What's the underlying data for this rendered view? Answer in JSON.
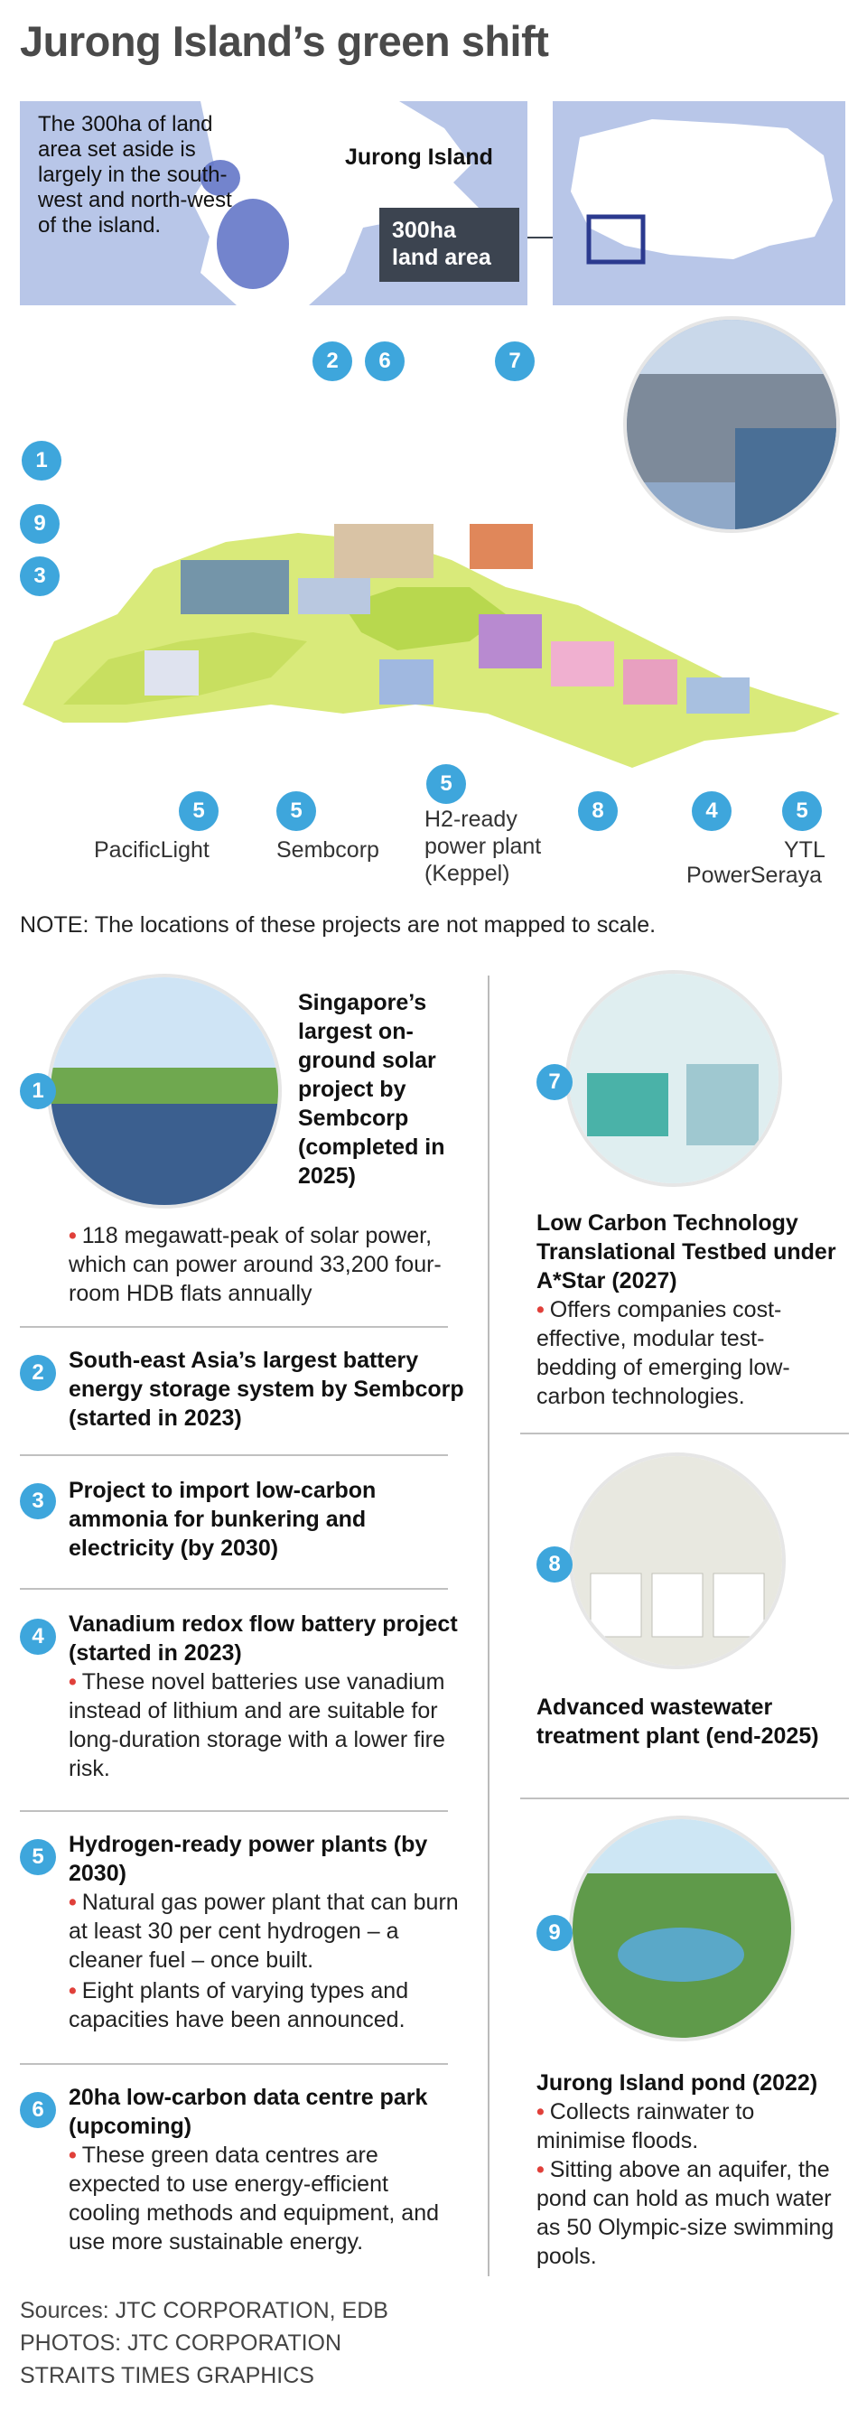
{
  "title": "Jurong Island’s green shift",
  "map": {
    "description": "The 300ha of land area set aside is largely in the south-west and north-west of the island.",
    "island_label": "Jurong Island",
    "area_line1": "300ha",
    "area_line2": "land area"
  },
  "illustration": {
    "markers": [
      "1",
      "2",
      "3",
      "4",
      "5",
      "6",
      "7",
      "8",
      "9"
    ],
    "labels": {
      "pacificlight": "PacificLight",
      "sembcorp": "Sembcorp",
      "keppel_line1": "H2-ready",
      "keppel_line2": "power plant",
      "keppel_line3": "(Keppel)",
      "ytl": "YTL",
      "powerseraya": "PowerSeraya"
    }
  },
  "note": "NOTE: The locations of these projects are not mapped to scale.",
  "projects": {
    "p1": {
      "num": "1",
      "title": "Singapore’s largest on-ground solar project by Sembcorp (completed in 2025)",
      "bullets": [
        "118 megawatt-peak of solar power, which can power around 33,200 four-room HDB flats annually"
      ]
    },
    "p2": {
      "num": "2",
      "title": "South-east Asia’s largest battery energy storage system by Sembcorp (started in 2023)"
    },
    "p3": {
      "num": "3",
      "title": "Project to import low-carbon ammonia for bunkering and electricity (by 2030)"
    },
    "p4": {
      "num": "4",
      "title": "Vanadium redox flow battery project (started in 2023)",
      "bullets": [
        "These novel batteries use vanadium instead of lithium and are suitable for long-duration storage with a lower fire risk."
      ]
    },
    "p5": {
      "num": "5",
      "title": "Hydrogen-ready power plants (by 2030)",
      "bullets": [
        "Natural gas power plant that can burn at least 30 per cent hydrogen – a cleaner fuel – once built.",
        "Eight plants of varying types and capacities have been announced."
      ]
    },
    "p6": {
      "num": "6",
      "title": "20ha low-carbon data centre park (upcoming)",
      "bullets": [
        "These green data centres are expected to use energy-efficient cooling methods and equipment, and use more sustainable energy."
      ]
    },
    "p7": {
      "num": "7",
      "title": "Low Carbon Technology Translational Testbed under A*Star (2027)",
      "bullets": [
        "Offers companies cost-effective, modular test-bedding of emerging low-carbon technologies."
      ]
    },
    "p8": {
      "num": "8",
      "title": "Advanced wastewater treatment plant (end-2025)"
    },
    "p9": {
      "num": "9",
      "title": "Jurong Island pond (2022)",
      "bullets": [
        "Collects rainwater to minimise floods.",
        "Sitting above an aquifer, the pond can hold as much water as 50 Olympic-size swimming pools."
      ]
    }
  },
  "credits": {
    "sources": "Sources: JTC CORPORATION, EDB",
    "photos": "PHOTOS: JTC CORPORATION",
    "graphics": "STRAITS TIMES GRAPHICS"
  },
  "colors": {
    "accent": "#3ea6dc",
    "bullet": "#e0403a",
    "map_bg": "#b8c6e8",
    "label_box": "#3c4450"
  }
}
